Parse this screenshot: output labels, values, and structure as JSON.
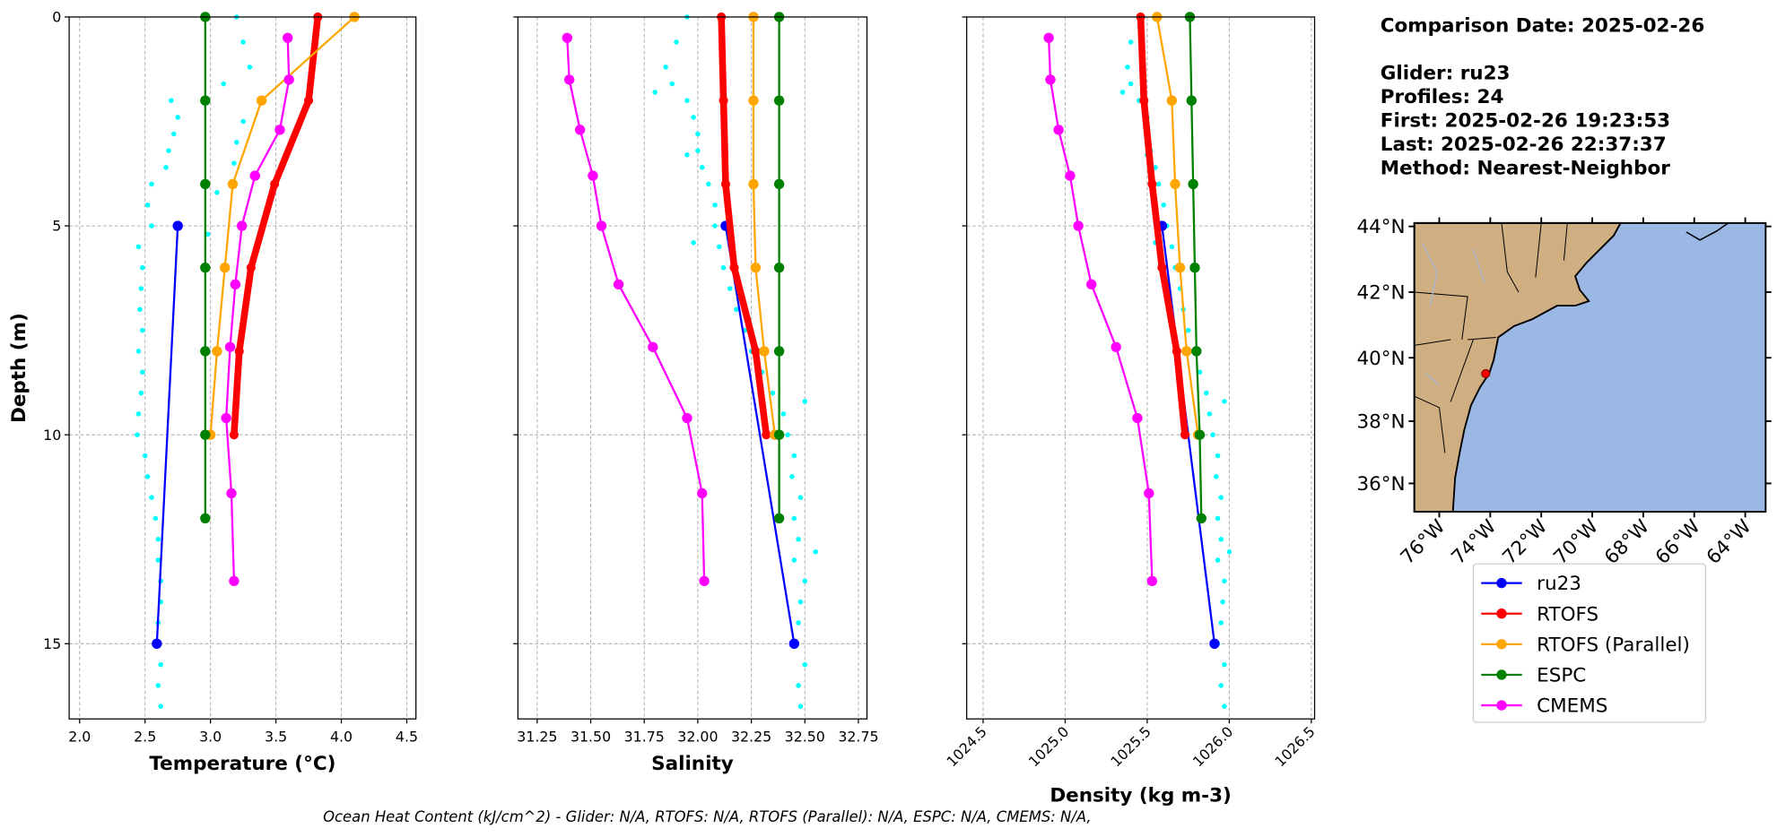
{
  "chart_data": [
    {
      "type": "line",
      "ylabel": "Depth (m)",
      "xlabel": "Temperature (°C)",
      "xlim": [
        1.92,
        4.57
      ],
      "xticks": [
        {
          "value": 2,
          "label": "2.0"
        },
        2.5,
        {
          "value": 3,
          "label": "3.0"
        },
        3.5,
        {
          "value": 4,
          "label": "4.0"
        },
        4.5
      ],
      "ylim": [
        16.8,
        0
      ],
      "yticks": [
        0,
        5,
        10,
        15
      ],
      "grid": true,
      "points": {
        "color": "#00ffff",
        "y": [
          0,
          0.6,
          1.2,
          1.6,
          2.0,
          2.4,
          2.8,
          3.2,
          3.6,
          4.0,
          4.5,
          5.0,
          5.5,
          6.0,
          6.5,
          7.0,
          7.5,
          8.0,
          8.5,
          9.0,
          9.5,
          10,
          10.5,
          11,
          11.5,
          12,
          12.5,
          13,
          13.5,
          14,
          14.5,
          15,
          15.5,
          16,
          16.5,
          2.5,
          3.0,
          3.5,
          4.2,
          5.2
        ],
        "x": [
          3.2,
          3.25,
          3.3,
          3.1,
          2.7,
          2.75,
          2.72,
          2.68,
          2.66,
          2.55,
          2.52,
          2.55,
          2.45,
          2.48,
          2.47,
          2.46,
          2.48,
          2.45,
          2.48,
          2.47,
          2.45,
          2.44,
          2.5,
          2.52,
          2.55,
          2.58,
          2.6,
          2.6,
          2.62,
          2.62,
          2.6,
          2.6,
          2.62,
          2.6,
          2.62,
          3.25,
          3.2,
          3.18,
          3.05,
          2.98
        ]
      },
      "series": [
        {
          "name": "ru23",
          "color": "#0000ff",
          "x": [
            2.75,
            2.59
          ],
          "y": [
            5,
            15
          ]
        },
        {
          "name": "RTOFS",
          "color": "#ff0000",
          "x": [
            3.82,
            3.75,
            3.49,
            3.31,
            3.22,
            3.18
          ],
          "y": [
            0,
            2,
            4,
            6,
            8,
            10
          ]
        },
        {
          "name": "RTOFS (Parallel)",
          "color": "#ffa500",
          "x": [
            4.1,
            3.39,
            3.17,
            3.11,
            3.05,
            3.0
          ],
          "y": [
            0,
            2,
            4,
            6,
            8,
            10
          ]
        },
        {
          "name": "ESPC",
          "color": "#008000",
          "x": [
            2.96,
            2.96,
            2.96,
            2.96,
            2.96,
            2.96,
            2.96
          ],
          "y": [
            0,
            2,
            4,
            6,
            8,
            10,
            12
          ]
        },
        {
          "name": "CMEMS",
          "color": "#ff00ff",
          "x": [
            3.59,
            3.6,
            3.53,
            3.34,
            3.24,
            3.19,
            3.15,
            3.12,
            3.16,
            3.18
          ],
          "y": [
            0.5,
            1.5,
            2.7,
            3.8,
            5.0,
            6.4,
            7.9,
            9.6,
            11.4,
            13.5
          ]
        }
      ]
    },
    {
      "type": "line",
      "xlabel": "Salinity",
      "xlim": [
        31.16,
        32.79
      ],
      "xticks": [
        31.25,
        {
          "value": 31.5,
          "label": "31.50"
        },
        31.75,
        {
          "value": 32,
          "label": "32.00"
        },
        32.25,
        {
          "value": 32.5,
          "label": "32.50"
        },
        32.75
      ],
      "ylim": [
        16.8,
        0
      ],
      "yticks": [
        0,
        5,
        10,
        15
      ],
      "grid": true,
      "points": {
        "color": "#00ffff",
        "y": [
          0,
          0.6,
          1.2,
          1.6,
          2.0,
          2.4,
          2.8,
          3.2,
          3.6,
          4.0,
          4.5,
          5.0,
          5.5,
          6.0,
          6.5,
          7.0,
          7.5,
          8.0,
          8.5,
          9.0,
          9.5,
          10,
          10.5,
          11,
          11.5,
          12,
          12.5,
          13,
          13.5,
          14,
          14.5,
          15,
          15.5,
          16,
          16.5,
          1.8,
          3.3,
          5.4,
          9.2,
          12.8
        ],
        "x": [
          31.95,
          31.9,
          31.85,
          31.88,
          31.95,
          31.98,
          32.0,
          32.0,
          32.02,
          32.05,
          32.08,
          32.08,
          32.1,
          32.12,
          32.15,
          32.18,
          32.22,
          32.25,
          32.3,
          32.35,
          32.4,
          32.42,
          32.45,
          32.44,
          32.48,
          32.45,
          32.47,
          32.45,
          32.5,
          32.48,
          32.47,
          32.45,
          32.5,
          32.47,
          32.48,
          31.8,
          31.95,
          31.98,
          32.5,
          32.55
        ]
      },
      "series": [
        {
          "name": "ru23",
          "color": "#0000ff",
          "x": [
            32.13,
            32.45
          ],
          "y": [
            5,
            15
          ]
        },
        {
          "name": "RTOFS",
          "color": "#ff0000",
          "x": [
            32.11,
            32.12,
            32.13,
            32.17,
            32.27,
            32.32
          ],
          "y": [
            0,
            2,
            4,
            6,
            8,
            10
          ]
        },
        {
          "name": "RTOFS (Parallel)",
          "color": "#ffa500",
          "x": [
            32.26,
            32.26,
            32.26,
            32.27,
            32.31,
            32.36
          ],
          "y": [
            0,
            2,
            4,
            6,
            8,
            10
          ]
        },
        {
          "name": "ESPC",
          "color": "#008000",
          "x": [
            32.38,
            32.38,
            32.38,
            32.38,
            32.38,
            32.38,
            32.38
          ],
          "y": [
            0,
            2,
            4,
            6,
            8,
            10,
            12
          ]
        },
        {
          "name": "CMEMS",
          "color": "#ff00ff",
          "x": [
            31.39,
            31.4,
            31.45,
            31.51,
            31.55,
            31.63,
            31.79,
            31.95,
            32.02,
            32.03
          ],
          "y": [
            0.5,
            1.5,
            2.7,
            3.8,
            5.0,
            6.4,
            7.9,
            9.6,
            11.4,
            13.5
          ]
        }
      ]
    },
    {
      "type": "line",
      "xlabel": "Density (kg m-3)",
      "xtick_rotation": 45,
      "xlim": [
        1024.4,
        1026.52
      ],
      "xticks": [
        1024.5,
        {
          "value": 1025,
          "label": "1025.0"
        },
        1025.5,
        {
          "value": 1026,
          "label": "1026.0"
        },
        1026.5
      ],
      "ylim": [
        16.8,
        0
      ],
      "yticks": [
        0,
        5,
        10,
        15
      ],
      "grid": true,
      "points": {
        "color": "#00ffff",
        "y": [
          0,
          0.6,
          1.2,
          1.6,
          2.0,
          2.4,
          2.8,
          3.2,
          3.6,
          4.0,
          4.5,
          5.0,
          5.5,
          6.0,
          6.5,
          7.0,
          7.5,
          8.0,
          8.5,
          9.0,
          9.5,
          10,
          10.5,
          11,
          11.5,
          12,
          12.5,
          13,
          13.5,
          14,
          14.5,
          15,
          15.5,
          16,
          16.5,
          1.8,
          3.3,
          5.4,
          9.2,
          12.8
        ],
        "x": [
          1025.45,
          1025.4,
          1025.38,
          1025.4,
          1025.45,
          1025.5,
          1025.5,
          1025.52,
          1025.55,
          1025.57,
          1025.6,
          1025.62,
          1025.65,
          1025.67,
          1025.7,
          1025.72,
          1025.75,
          1025.78,
          1025.82,
          1025.86,
          1025.88,
          1025.9,
          1025.93,
          1025.92,
          1025.95,
          1025.93,
          1025.95,
          1025.93,
          1025.97,
          1025.96,
          1025.95,
          1025.93,
          1025.97,
          1025.95,
          1025.97,
          1025.35,
          1025.5,
          1025.55,
          1025.97,
          1026.0
        ]
      },
      "series": [
        {
          "name": "ru23",
          "color": "#0000ff",
          "x": [
            1025.59,
            1025.91
          ],
          "y": [
            5,
            15
          ]
        },
        {
          "name": "RTOFS",
          "color": "#ff0000",
          "x": [
            1025.46,
            1025.48,
            1025.53,
            1025.59,
            1025.68,
            1025.73
          ],
          "y": [
            0,
            2,
            4,
            6,
            8,
            10
          ]
        },
        {
          "name": "RTOFS (Parallel)",
          "color": "#ffa500",
          "x": [
            1025.56,
            1025.65,
            1025.67,
            1025.7,
            1025.74,
            1025.81
          ],
          "y": [
            0,
            2,
            4,
            6,
            8,
            10
          ]
        },
        {
          "name": "ESPC",
          "color": "#008000",
          "x": [
            1025.76,
            1025.77,
            1025.78,
            1025.79,
            1025.8,
            1025.82,
            1025.83
          ],
          "y": [
            0,
            2,
            4,
            6,
            8,
            10,
            12
          ]
        },
        {
          "name": "CMEMS",
          "color": "#ff00ff",
          "x": [
            1024.9,
            1024.91,
            1024.96,
            1025.03,
            1025.08,
            1025.16,
            1025.31,
            1025.44,
            1025.51,
            1025.53
          ],
          "y": [
            0.5,
            1.5,
            2.7,
            3.8,
            5.0,
            6.4,
            7.9,
            9.6,
            11.4,
            13.5
          ]
        }
      ]
    }
  ],
  "info": {
    "title": "Comparison Date: 2025-02-26",
    "lines": [
      "Glider: ru23",
      "Profiles: 24",
      "First: 2025-02-26 19:23:53",
      "Last: 2025-02-26 22:37:37",
      "Method: Nearest-Neighbor"
    ]
  },
  "map": {
    "lat_labels": [
      "44°N",
      "42°N",
      "40°N",
      "38°N",
      "36°N"
    ],
    "lon_labels": [
      "76°W",
      "74°W",
      "72°W",
      "70°W",
      "68°W",
      "66°W",
      "64°W"
    ]
  },
  "footer": "Ocean Heat Content (kJ/cm^2) - Glider: N/A,  RTOFS: N/A,  RTOFS (Parallel): N/A,  ESPC: N/A,  CMEMS: N/A,"
}
